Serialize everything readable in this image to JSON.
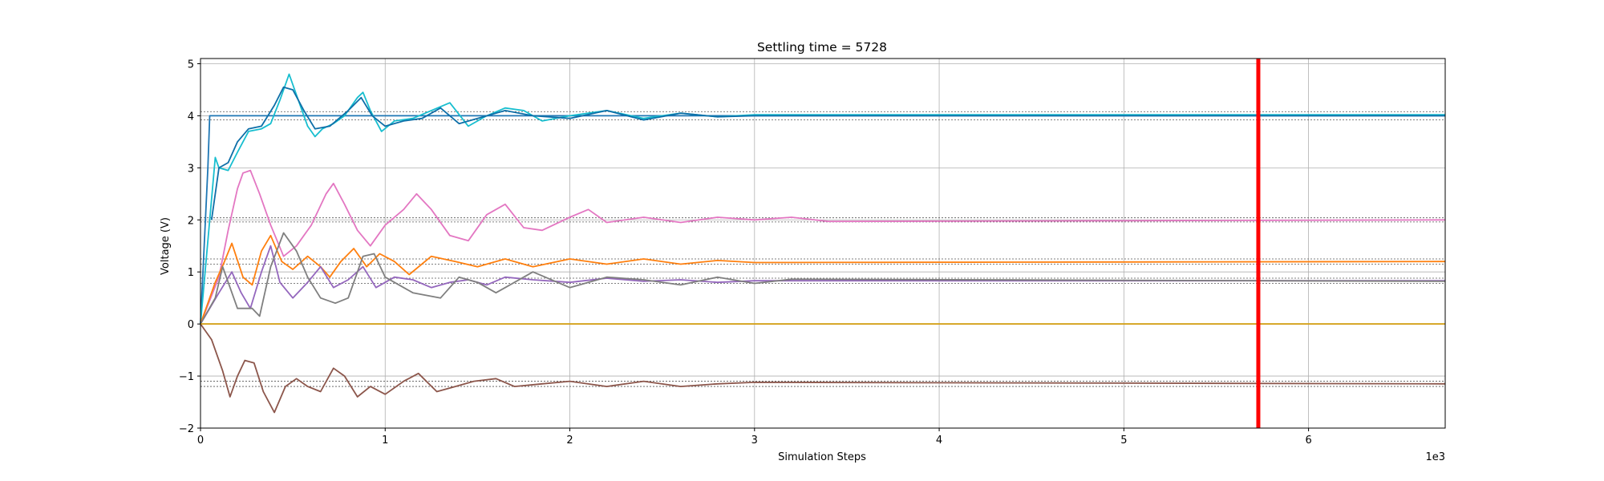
{
  "chart_data": {
    "type": "line",
    "title": "Settling time = 5728",
    "xlabel": "Simulation Steps",
    "ylabel": "Voltage (V)",
    "x_offset_text": "1e3",
    "xlim": [
      0,
      6740
    ],
    "ylim": [
      -2,
      5.1
    ],
    "x_ticks": [
      0,
      1000,
      2000,
      3000,
      4000,
      5000,
      6000
    ],
    "x_tick_labels": [
      "0",
      "1",
      "2",
      "3",
      "4",
      "5",
      "6"
    ],
    "y_ticks": [
      -2,
      -1,
      0,
      1,
      2,
      3,
      4,
      5
    ],
    "y_tick_labels": [
      "−2",
      "−1",
      "0",
      "1",
      "2",
      "3",
      "4",
      "5"
    ],
    "grid": true,
    "settling_marker": {
      "x": 5728,
      "color": "#ff0000"
    },
    "tolerance_bands": [
      {
        "center": 4.0,
        "half_width": 0.08
      },
      {
        "center": 2.0,
        "half_width": 0.04
      },
      {
        "center": 1.2,
        "half_width": 0.05
      },
      {
        "center": 0.83,
        "half_width": 0.05
      },
      {
        "center": -1.15,
        "half_width": 0.05
      }
    ],
    "series": [
      {
        "color": "#1f77b4",
        "points": [
          [
            0,
            0
          ],
          [
            40,
            3.0
          ],
          [
            50,
            4.0
          ],
          [
            100,
            4.0
          ],
          [
            200,
            4.0
          ],
          [
            600,
            4.0
          ],
          [
            6740,
            4.0
          ]
        ]
      },
      {
        "color": "#17becf",
        "points": [
          [
            0,
            0
          ],
          [
            80,
            3.2
          ],
          [
            100,
            3.0
          ],
          [
            150,
            2.95
          ],
          [
            200,
            3.3
          ],
          [
            260,
            3.7
          ],
          [
            330,
            3.75
          ],
          [
            380,
            3.85
          ],
          [
            430,
            4.3
          ],
          [
            460,
            4.6
          ],
          [
            480,
            4.8
          ],
          [
            500,
            4.6
          ],
          [
            540,
            4.2
          ],
          [
            580,
            3.8
          ],
          [
            620,
            3.6
          ],
          [
            660,
            3.75
          ],
          [
            720,
            3.85
          ],
          [
            780,
            4.0
          ],
          [
            850,
            4.35
          ],
          [
            880,
            4.45
          ],
          [
            920,
            4.1
          ],
          [
            980,
            3.7
          ],
          [
            1050,
            3.9
          ],
          [
            1150,
            3.95
          ],
          [
            1250,
            4.1
          ],
          [
            1350,
            4.25
          ],
          [
            1450,
            3.8
          ],
          [
            1550,
            4.0
          ],
          [
            1650,
            4.15
          ],
          [
            1750,
            4.1
          ],
          [
            1850,
            3.9
          ],
          [
            2000,
            4.0
          ],
          [
            2200,
            4.1
          ],
          [
            2400,
            3.95
          ],
          [
            2600,
            4.05
          ],
          [
            2800,
            3.98
          ],
          [
            3000,
            4.02
          ],
          [
            6740,
            4.02
          ]
        ]
      },
      {
        "color": "#0e6fa8",
        "points": [
          [
            60,
            2.0
          ],
          [
            100,
            3.0
          ],
          [
            150,
            3.1
          ],
          [
            200,
            3.5
          ],
          [
            260,
            3.75
          ],
          [
            330,
            3.8
          ],
          [
            400,
            4.2
          ],
          [
            450,
            4.55
          ],
          [
            500,
            4.5
          ],
          [
            560,
            4.1
          ],
          [
            620,
            3.75
          ],
          [
            700,
            3.8
          ],
          [
            800,
            4.1
          ],
          [
            870,
            4.35
          ],
          [
            930,
            4.0
          ],
          [
            1000,
            3.8
          ],
          [
            1100,
            3.9
          ],
          [
            1200,
            3.95
          ],
          [
            1300,
            4.15
          ],
          [
            1400,
            3.85
          ],
          [
            1500,
            3.95
          ],
          [
            1650,
            4.1
          ],
          [
            1800,
            4.0
          ],
          [
            2000,
            3.95
          ],
          [
            2200,
            4.1
          ],
          [
            2400,
            3.92
          ],
          [
            2600,
            4.05
          ],
          [
            2800,
            3.98
          ],
          [
            3000,
            4.0
          ],
          [
            6740,
            4.0
          ]
        ]
      },
      {
        "color": "#e377c2",
        "points": [
          [
            0,
            0
          ],
          [
            100,
            0.9
          ],
          [
            150,
            1.8
          ],
          [
            200,
            2.6
          ],
          [
            230,
            2.9
          ],
          [
            270,
            2.95
          ],
          [
            320,
            2.5
          ],
          [
            380,
            1.9
          ],
          [
            450,
            1.3
          ],
          [
            520,
            1.5
          ],
          [
            600,
            1.9
          ],
          [
            680,
            2.5
          ],
          [
            720,
            2.7
          ],
          [
            780,
            2.3
          ],
          [
            850,
            1.8
          ],
          [
            920,
            1.5
          ],
          [
            1000,
            1.9
          ],
          [
            1100,
            2.2
          ],
          [
            1170,
            2.5
          ],
          [
            1250,
            2.2
          ],
          [
            1350,
            1.7
          ],
          [
            1450,
            1.6
          ],
          [
            1550,
            2.1
          ],
          [
            1650,
            2.3
          ],
          [
            1750,
            1.85
          ],
          [
            1850,
            1.8
          ],
          [
            2000,
            2.05
          ],
          [
            2100,
            2.2
          ],
          [
            2200,
            1.95
          ],
          [
            2400,
            2.05
          ],
          [
            2600,
            1.95
          ],
          [
            2800,
            2.05
          ],
          [
            3000,
            2.0
          ],
          [
            3200,
            2.05
          ],
          [
            3400,
            1.97
          ],
          [
            6740,
            2.0
          ]
        ]
      },
      {
        "color": "#ff7f0e",
        "points": [
          [
            0,
            0
          ],
          [
            80,
            0.8
          ],
          [
            130,
            1.2
          ],
          [
            170,
            1.55
          ],
          [
            230,
            0.9
          ],
          [
            280,
            0.75
          ],
          [
            330,
            1.4
          ],
          [
            380,
            1.7
          ],
          [
            440,
            1.2
          ],
          [
            500,
            1.05
          ],
          [
            580,
            1.3
          ],
          [
            650,
            1.1
          ],
          [
            700,
            0.9
          ],
          [
            760,
            1.2
          ],
          [
            830,
            1.45
          ],
          [
            900,
            1.1
          ],
          [
            970,
            1.35
          ],
          [
            1050,
            1.2
          ],
          [
            1130,
            0.95
          ],
          [
            1250,
            1.3
          ],
          [
            1380,
            1.2
          ],
          [
            1500,
            1.1
          ],
          [
            1650,
            1.25
          ],
          [
            1800,
            1.1
          ],
          [
            2000,
            1.25
          ],
          [
            2200,
            1.15
          ],
          [
            2400,
            1.25
          ],
          [
            2600,
            1.15
          ],
          [
            2800,
            1.22
          ],
          [
            3000,
            1.18
          ],
          [
            6740,
            1.2
          ]
        ]
      },
      {
        "color": "#9467bd",
        "points": [
          [
            0,
            0
          ],
          [
            100,
            0.6
          ],
          [
            170,
            1.0
          ],
          [
            220,
            0.6
          ],
          [
            270,
            0.3
          ],
          [
            330,
            1.0
          ],
          [
            380,
            1.5
          ],
          [
            430,
            0.8
          ],
          [
            500,
            0.5
          ],
          [
            580,
            0.8
          ],
          [
            650,
            1.1
          ],
          [
            720,
            0.7
          ],
          [
            800,
            0.85
          ],
          [
            880,
            1.1
          ],
          [
            950,
            0.7
          ],
          [
            1050,
            0.9
          ],
          [
            1150,
            0.85
          ],
          [
            1250,
            0.7
          ],
          [
            1350,
            0.8
          ],
          [
            1450,
            0.85
          ],
          [
            1550,
            0.75
          ],
          [
            1650,
            0.9
          ],
          [
            1800,
            0.85
          ],
          [
            2000,
            0.8
          ],
          [
            2200,
            0.88
          ],
          [
            2400,
            0.82
          ],
          [
            2600,
            0.85
          ],
          [
            2800,
            0.8
          ],
          [
            3000,
            0.83
          ],
          [
            6740,
            0.83
          ]
        ]
      },
      {
        "color": "#7f7f7f",
        "points": [
          [
            0,
            0
          ],
          [
            80,
            0.5
          ],
          [
            120,
            1.1
          ],
          [
            200,
            0.3
          ],
          [
            280,
            0.3
          ],
          [
            320,
            0.15
          ],
          [
            380,
            1.1
          ],
          [
            450,
            1.75
          ],
          [
            520,
            1.4
          ],
          [
            580,
            0.9
          ],
          [
            650,
            0.5
          ],
          [
            730,
            0.4
          ],
          [
            800,
            0.5
          ],
          [
            880,
            1.3
          ],
          [
            940,
            1.35
          ],
          [
            1000,
            0.9
          ],
          [
            1150,
            0.6
          ],
          [
            1300,
            0.5
          ],
          [
            1400,
            0.9
          ],
          [
            1500,
            0.8
          ],
          [
            1600,
            0.6
          ],
          [
            1700,
            0.8
          ],
          [
            1800,
            1.0
          ],
          [
            2000,
            0.7
          ],
          [
            2200,
            0.9
          ],
          [
            2400,
            0.85
          ],
          [
            2600,
            0.75
          ],
          [
            2800,
            0.9
          ],
          [
            3000,
            0.78
          ],
          [
            3200,
            0.86
          ],
          [
            6740,
            0.82
          ]
        ]
      },
      {
        "color": "#8c564b",
        "points": [
          [
            0,
            0
          ],
          [
            60,
            -0.3
          ],
          [
            120,
            -0.9
          ],
          [
            160,
            -1.4
          ],
          [
            200,
            -1.0
          ],
          [
            240,
            -0.7
          ],
          [
            290,
            -0.75
          ],
          [
            340,
            -1.3
          ],
          [
            400,
            -1.7
          ],
          [
            460,
            -1.2
          ],
          [
            520,
            -1.05
          ],
          [
            580,
            -1.2
          ],
          [
            650,
            -1.3
          ],
          [
            720,
            -0.85
          ],
          [
            780,
            -1.0
          ],
          [
            850,
            -1.4
          ],
          [
            920,
            -1.2
          ],
          [
            1000,
            -1.35
          ],
          [
            1100,
            -1.1
          ],
          [
            1180,
            -0.95
          ],
          [
            1280,
            -1.3
          ],
          [
            1380,
            -1.2
          ],
          [
            1480,
            -1.1
          ],
          [
            1600,
            -1.05
          ],
          [
            1700,
            -1.2
          ],
          [
            1850,
            -1.15
          ],
          [
            2000,
            -1.1
          ],
          [
            2200,
            -1.2
          ],
          [
            2400,
            -1.1
          ],
          [
            2600,
            -1.2
          ],
          [
            2800,
            -1.15
          ],
          [
            3000,
            -1.12
          ],
          [
            6740,
            -1.15
          ]
        ]
      },
      {
        "color": "#bcbd22",
        "points": [
          [
            0,
            0
          ],
          [
            6740,
            0
          ]
        ]
      },
      {
        "color": "#d6a01c",
        "points": [
          [
            0,
            0
          ],
          [
            6740,
            0
          ]
        ]
      }
    ]
  }
}
